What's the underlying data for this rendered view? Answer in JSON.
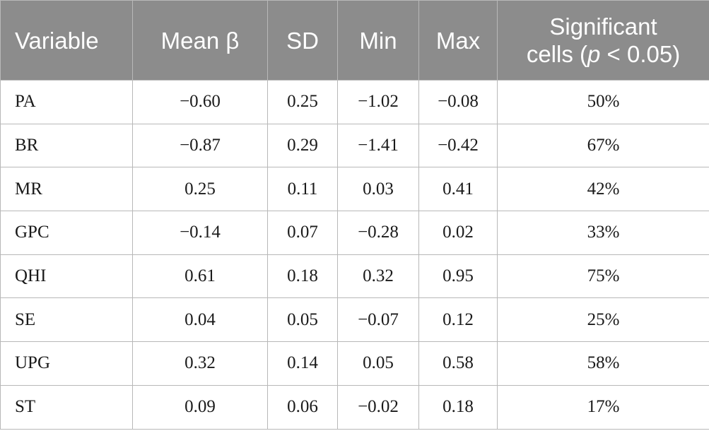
{
  "table": {
    "header": {
      "variable": "Variable",
      "mean_beta": "Mean β",
      "sd": "SD",
      "min": "Min",
      "max": "Max",
      "significant_line1": "Significant",
      "significant_line2_pre": "cells (",
      "significant_line2_p": "p",
      "significant_line2_post": " < 0.05)"
    },
    "rows": [
      {
        "variable": "PA",
        "mean": "−0.60",
        "sd": "0.25",
        "min": "−1.02",
        "max": "−0.08",
        "significant": "50%"
      },
      {
        "variable": "BR",
        "mean": "−0.87",
        "sd": "0.29",
        "min": "−1.41",
        "max": "−0.42",
        "significant": "67%"
      },
      {
        "variable": "MR",
        "mean": "0.25",
        "sd": "0.11",
        "min": "0.03",
        "max": "0.41",
        "significant": "42%"
      },
      {
        "variable": "GPC",
        "mean": "−0.14",
        "sd": "0.07",
        "min": "−0.28",
        "max": "0.02",
        "significant": "33%"
      },
      {
        "variable": "QHI",
        "mean": "0.61",
        "sd": "0.18",
        "min": "0.32",
        "max": "0.95",
        "significant": "75%"
      },
      {
        "variable": "SE",
        "mean": "0.04",
        "sd": "0.05",
        "min": "−0.07",
        "max": "0.12",
        "significant": "25%"
      },
      {
        "variable": "UPG",
        "mean": "0.32",
        "sd": "0.14",
        "min": "0.05",
        "max": "0.58",
        "significant": "58%"
      },
      {
        "variable": "ST",
        "mean": "0.09",
        "sd": "0.06",
        "min": "−0.02",
        "max": "0.18",
        "significant": "17%"
      }
    ]
  }
}
